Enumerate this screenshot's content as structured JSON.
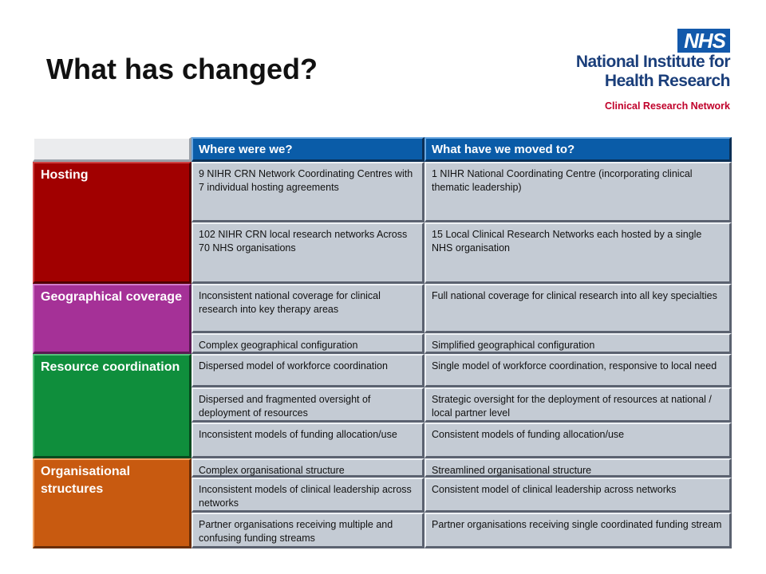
{
  "slide": {
    "title": "What has changed?"
  },
  "logo": {
    "badge": "NHS",
    "line1": "National Institute for",
    "line2": "Health Research",
    "line3": "Clinical Research Network",
    "colors": {
      "badge": "#1359ab",
      "text": "#1a3e7a",
      "network": "#c0002a"
    }
  },
  "table": {
    "headers": {
      "corner": "",
      "before": "Where were we?",
      "after": "What have we moved to?"
    },
    "categories": {
      "hosting": "Hosting",
      "geographical": "Geographical coverage",
      "resource": "Resource coordination",
      "organisational": "Organisational structures"
    },
    "rows": [
      {
        "before": "9 NIHR CRN Network Coordinating Centres with 7 individual hosting agreements",
        "after": "1 NIHR National Coordinating Centre (incorporating clinical thematic leadership)"
      },
      {
        "before": "102 NIHR CRN local research networks Across 70 NHS organisations",
        "after": "15 Local Clinical Research Networks each hosted by a single NHS organisation"
      },
      {
        "before": "Inconsistent national coverage for clinical research into key therapy areas",
        "after": "Full national coverage for clinical research into all key specialties"
      },
      {
        "before": "Complex geographical configuration",
        "after": "Simplified geographical configuration"
      },
      {
        "before": "Dispersed model of workforce coordination",
        "after": "Single model of workforce coordination, responsive to local need"
      },
      {
        "before": "Dispersed and fragmented oversight of deployment of resources",
        "after": "Strategic oversight for the deployment of resources at national / local partner level"
      },
      {
        "before": "Inconsistent models of funding allocation/use",
        "after": "Consistent models of funding allocation/use"
      },
      {
        "before": "Complex organisational structure",
        "after": "Streamlined organisational structure"
      },
      {
        "before": "Inconsistent models of clinical leadership across networks",
        "after": "Consistent model of clinical leadership across networks"
      },
      {
        "before": "Partner organisations receiving multiple and  confusing funding streams",
        "after": "Partner organisations receiving single coordinated funding stream"
      }
    ],
    "colors": {
      "header": "#0a5ca8",
      "hosting": "#a10000",
      "geographical": "#a53197",
      "resource": "#0f8e3c",
      "organisational": "#c85a10",
      "body_cell": "#c4cbd4"
    }
  }
}
